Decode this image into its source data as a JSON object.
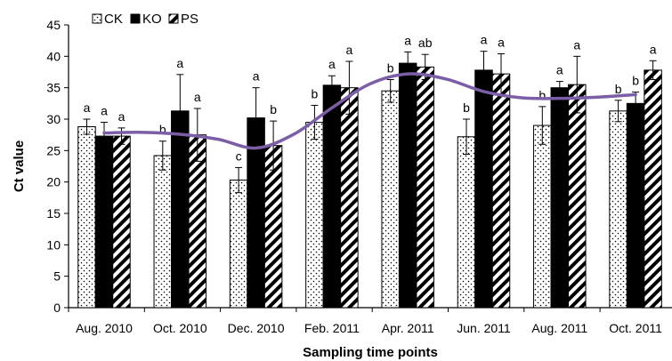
{
  "chart_data": {
    "type": "bar",
    "title": "",
    "xlabel": "Sampling time points",
    "ylabel": "Ct value",
    "ylim": [
      0,
      45
    ],
    "yticks": [
      0,
      5,
      10,
      15,
      20,
      25,
      30,
      35,
      40,
      45
    ],
    "grid": false,
    "legend_position": "top-left",
    "categories": [
      "Aug. 2010",
      "Oct. 2010",
      "Dec. 2010",
      "Feb. 2011",
      "Apr. 2011",
      "Jun. 2011",
      "Aug. 2011",
      "Oct. 2011"
    ],
    "series": [
      {
        "name": "CK",
        "pattern": "dotted",
        "values": [
          28.8,
          24.2,
          20.3,
          29.5,
          34.5,
          27.2,
          29.0,
          31.3
        ],
        "errors": [
          1.2,
          2.3,
          2.0,
          2.7,
          1.8,
          2.8,
          3.0,
          1.7
        ],
        "letters": [
          "a",
          "b",
          "c",
          "b",
          "b",
          "b",
          "b",
          "b"
        ]
      },
      {
        "name": "KO",
        "pattern": "solid",
        "values": [
          27.3,
          31.3,
          30.2,
          35.4,
          38.9,
          37.8,
          35.0,
          32.5
        ],
        "errors": [
          2.2,
          5.8,
          4.8,
          1.5,
          1.8,
          3.0,
          1.0,
          1.8
        ],
        "letters": [
          "a",
          "a",
          "a",
          "a",
          "a",
          "a",
          "a",
          "b"
        ]
      },
      {
        "name": "PS",
        "pattern": "striped",
        "values": [
          27.3,
          27.5,
          25.8,
          35.0,
          38.3,
          37.2,
          35.5,
          37.8
        ],
        "errors": [
          1.3,
          4.2,
          3.9,
          4.2,
          2.0,
          3.2,
          4.5,
          1.5
        ],
        "letters": [
          "a",
          "a",
          "b",
          "a",
          "ab",
          "a",
          "a",
          "a"
        ]
      }
    ],
    "trend_line": {
      "color": "#7b5ea7",
      "x_positions": [
        0.0,
        0.5,
        1.0,
        1.5,
        2.0,
        2.5,
        3.0,
        3.5,
        4.0,
        4.5,
        5.0,
        5.5,
        6.0,
        6.5,
        7.0
      ],
      "values": [
        27.8,
        27.9,
        27.6,
        26.8,
        25.4,
        27.6,
        31.8,
        35.6,
        37.2,
        36.4,
        34.4,
        33.4,
        33.3,
        33.5,
        33.9
      ]
    },
    "colors": {
      "axis": "#000000",
      "bar_fill": "#000000",
      "bar_bg": "#ffffff",
      "error_bar": "#000000"
    }
  }
}
